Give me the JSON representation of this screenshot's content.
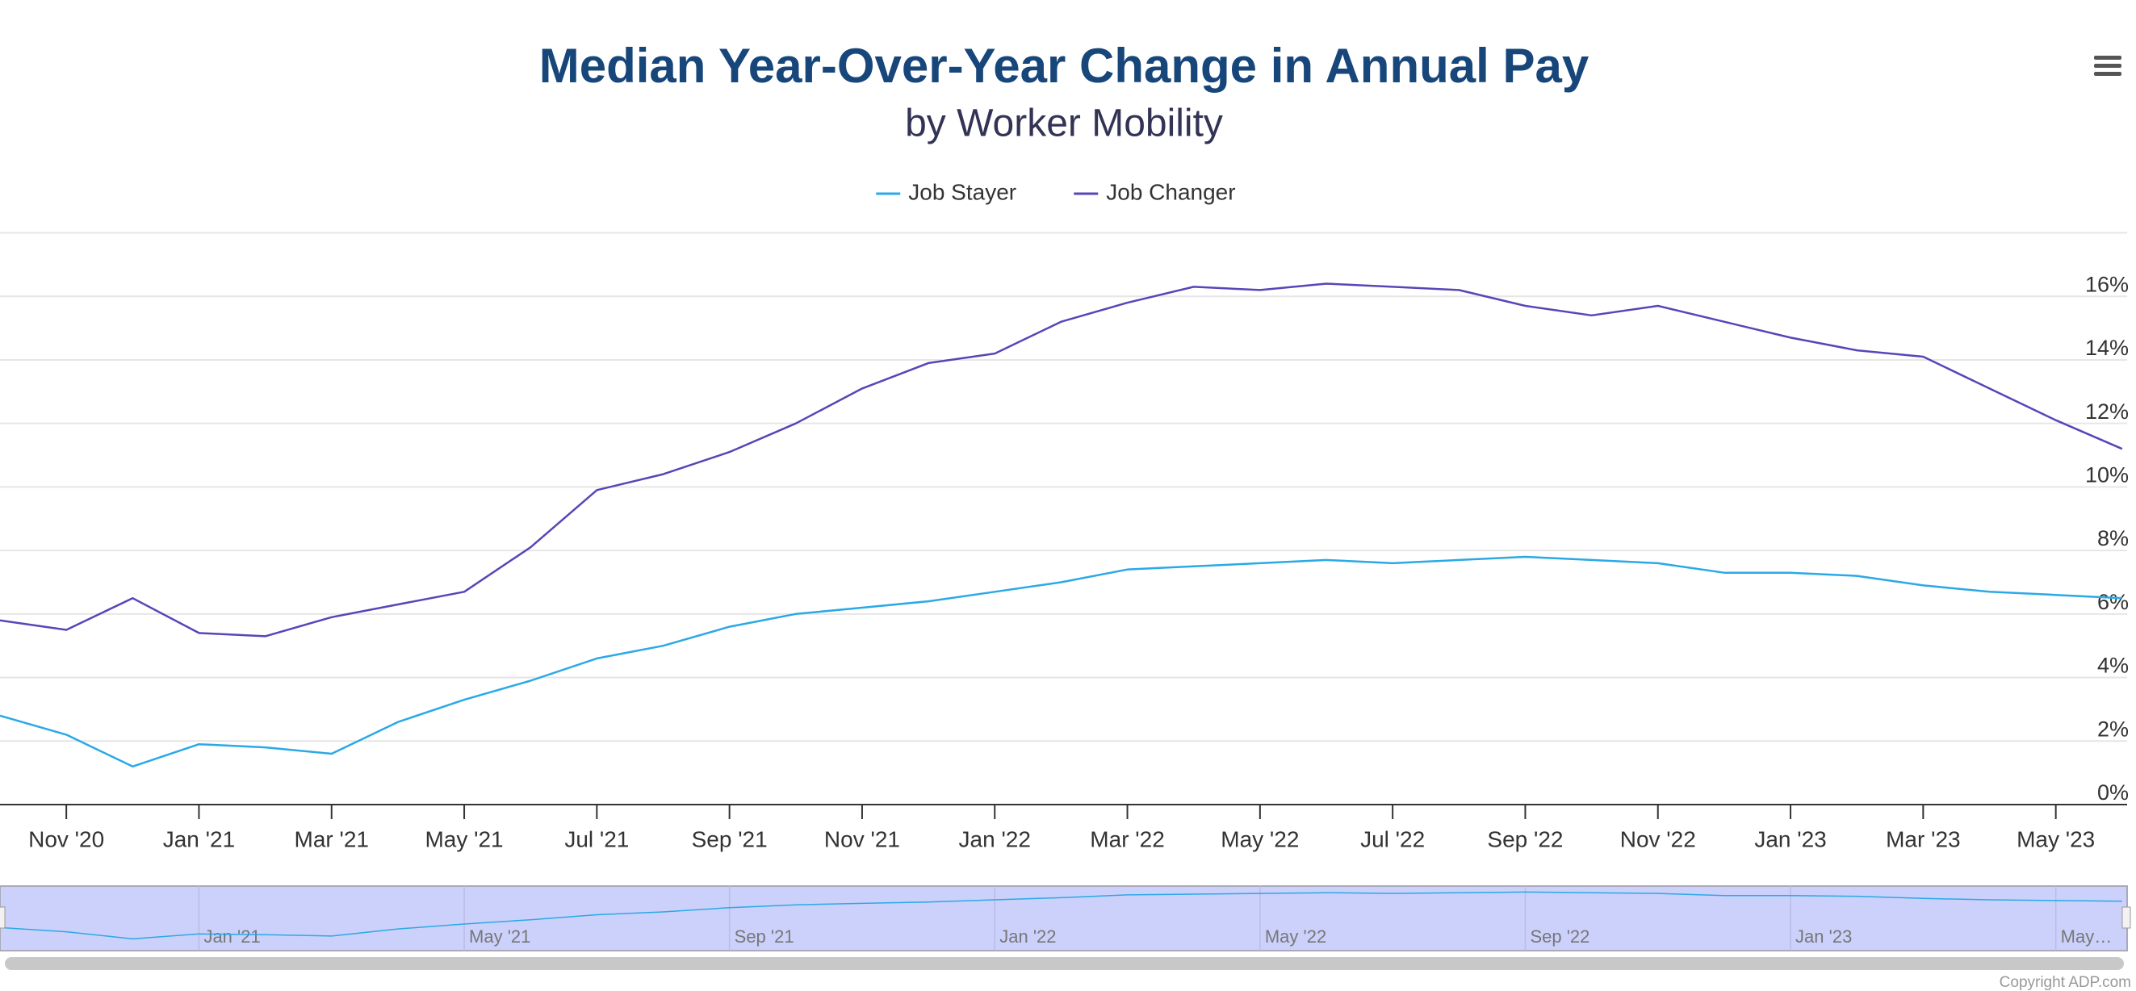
{
  "chart_data": {
    "type": "line",
    "title": "Median Year-Over-Year Change in Annual Pay",
    "subtitle": "by Worker Mobility",
    "categories": [
      null,
      "Nov '20",
      null,
      "Jan '21",
      null,
      "Mar '21",
      null,
      "May '21",
      null,
      "Jul '21",
      null,
      "Sep '21",
      null,
      "Nov '21",
      null,
      "Jan '22",
      null,
      "Mar '22",
      null,
      "May '22",
      null,
      "Jul '22",
      null,
      "Sep '22",
      null,
      "Nov '22",
      null,
      "Jan '23",
      null,
      "Mar '23",
      null,
      "May '23",
      null
    ],
    "series": [
      {
        "name": "Job Stayer",
        "color": "#2aa9e6",
        "values": [
          2.8,
          2.2,
          1.2,
          1.9,
          1.8,
          1.6,
          2.6,
          3.3,
          3.9,
          4.6,
          5.0,
          5.6,
          6.0,
          6.2,
          6.4,
          6.7,
          7.0,
          7.4,
          7.5,
          7.6,
          7.7,
          7.6,
          7.7,
          7.8,
          7.7,
          7.6,
          7.3,
          7.3,
          7.2,
          6.9,
          6.7,
          6.6,
          6.5
        ]
      },
      {
        "name": "Job Changer",
        "color": "#5a44b8",
        "values": [
          5.8,
          5.5,
          6.5,
          5.4,
          5.3,
          5.9,
          6.3,
          6.7,
          8.1,
          9.9,
          10.4,
          11.1,
          12.0,
          13.1,
          13.9,
          14.2,
          15.2,
          15.8,
          16.3,
          16.2,
          16.4,
          16.3,
          16.2,
          15.7,
          15.4,
          15.7,
          15.2,
          14.7,
          14.3,
          14.1,
          13.1,
          12.1,
          11.2
        ]
      }
    ],
    "ylim": [
      0,
      18
    ],
    "yticks": [
      {
        "value": 0,
        "label": "0%"
      },
      {
        "value": 2,
        "label": "2%"
      },
      {
        "value": 4,
        "label": "4%"
      },
      {
        "value": 6,
        "label": "6%"
      },
      {
        "value": 8,
        "label": "8%"
      },
      {
        "value": 10,
        "label": "10%"
      },
      {
        "value": 12,
        "label": "12%"
      },
      {
        "value": 14,
        "label": "14%"
      },
      {
        "value": 16,
        "label": "16%"
      }
    ],
    "grid": true,
    "legend": "top",
    "navigator": {
      "labels": [
        "Jan '21",
        "May '21",
        "Sep '21",
        "Jan '22",
        "May '22",
        "Sep '22",
        "Jan '23",
        "May…"
      ]
    },
    "credits": "Copyright ADP.com"
  }
}
